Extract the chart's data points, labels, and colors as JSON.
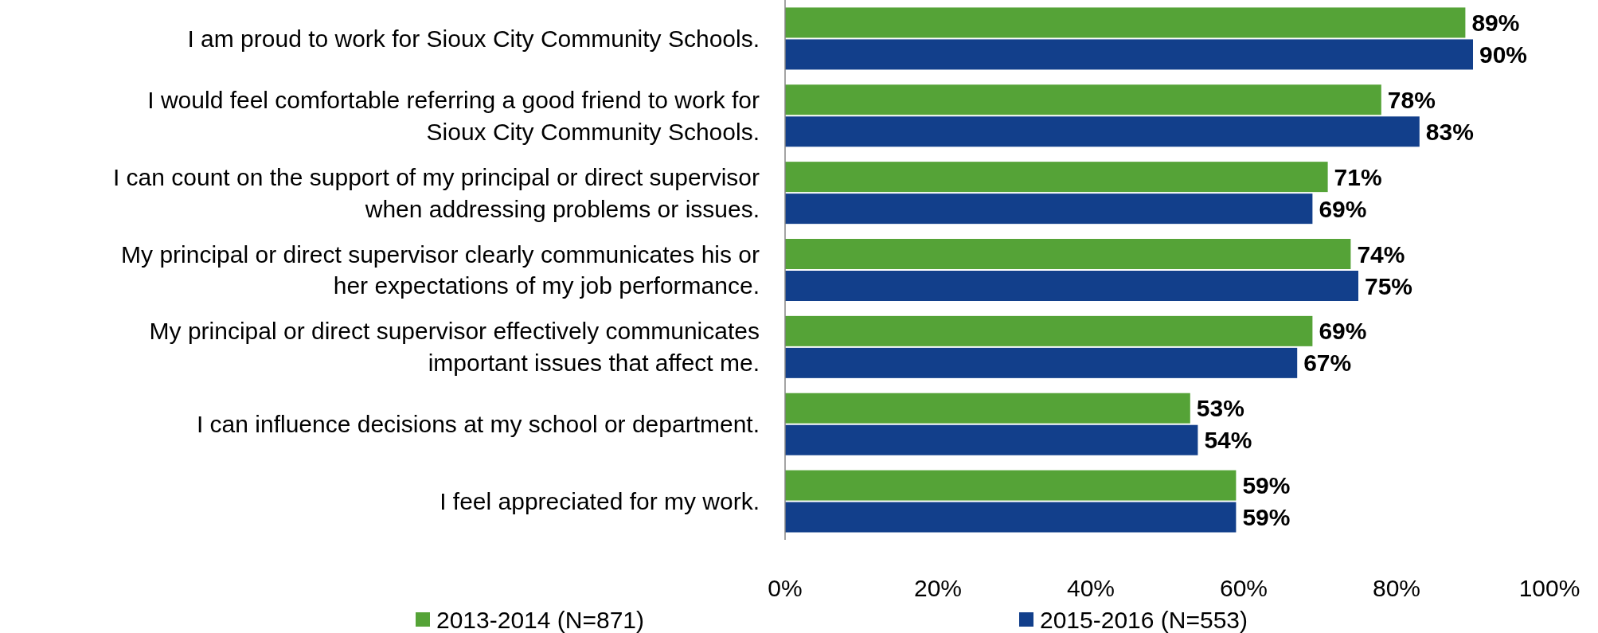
{
  "chart_data": {
    "type": "bar",
    "orientation": "horizontal",
    "categories": [
      "I am proud to work for Sioux City Community Schools.",
      "I would feel comfortable referring a good friend to work for Sioux City Community Schools.",
      "I can count on the support of my principal or direct supervisor when addressing problems or issues.",
      "My principal or direct supervisor clearly communicates his or her expectations of my job performance.",
      "My principal or direct supervisor effectively communicates important issues that affect me.",
      "I can influence decisions at my school or department.",
      "I feel appreciated for my work."
    ],
    "series": [
      {
        "name": "2013-2014 (N=871)",
        "color": "#55a337",
        "values": [
          89,
          78,
          71,
          74,
          69,
          53,
          59
        ],
        "value_labels": [
          "89%",
          "78%",
          "71%",
          "74%",
          "69%",
          "53%",
          "59%"
        ]
      },
      {
        "name": "2015-2016 (N=553)",
        "color": "#123f8b",
        "values": [
          90,
          83,
          69,
          75,
          67,
          54,
          59
        ],
        "value_labels": [
          "90%",
          "83%",
          "69%",
          "75%",
          "67%",
          "54%",
          "59%"
        ]
      }
    ],
    "xlim": [
      0,
      100
    ],
    "xticks": [
      {
        "value": 0,
        "label": "0%"
      },
      {
        "value": 20,
        "label": "20%"
      },
      {
        "value": 40,
        "label": "40%"
      },
      {
        "value": 60,
        "label": "60%"
      },
      {
        "value": 80,
        "label": "80%"
      },
      {
        "value": 100,
        "label": "100%"
      }
    ],
    "grid": false,
    "legend": "bottom"
  }
}
